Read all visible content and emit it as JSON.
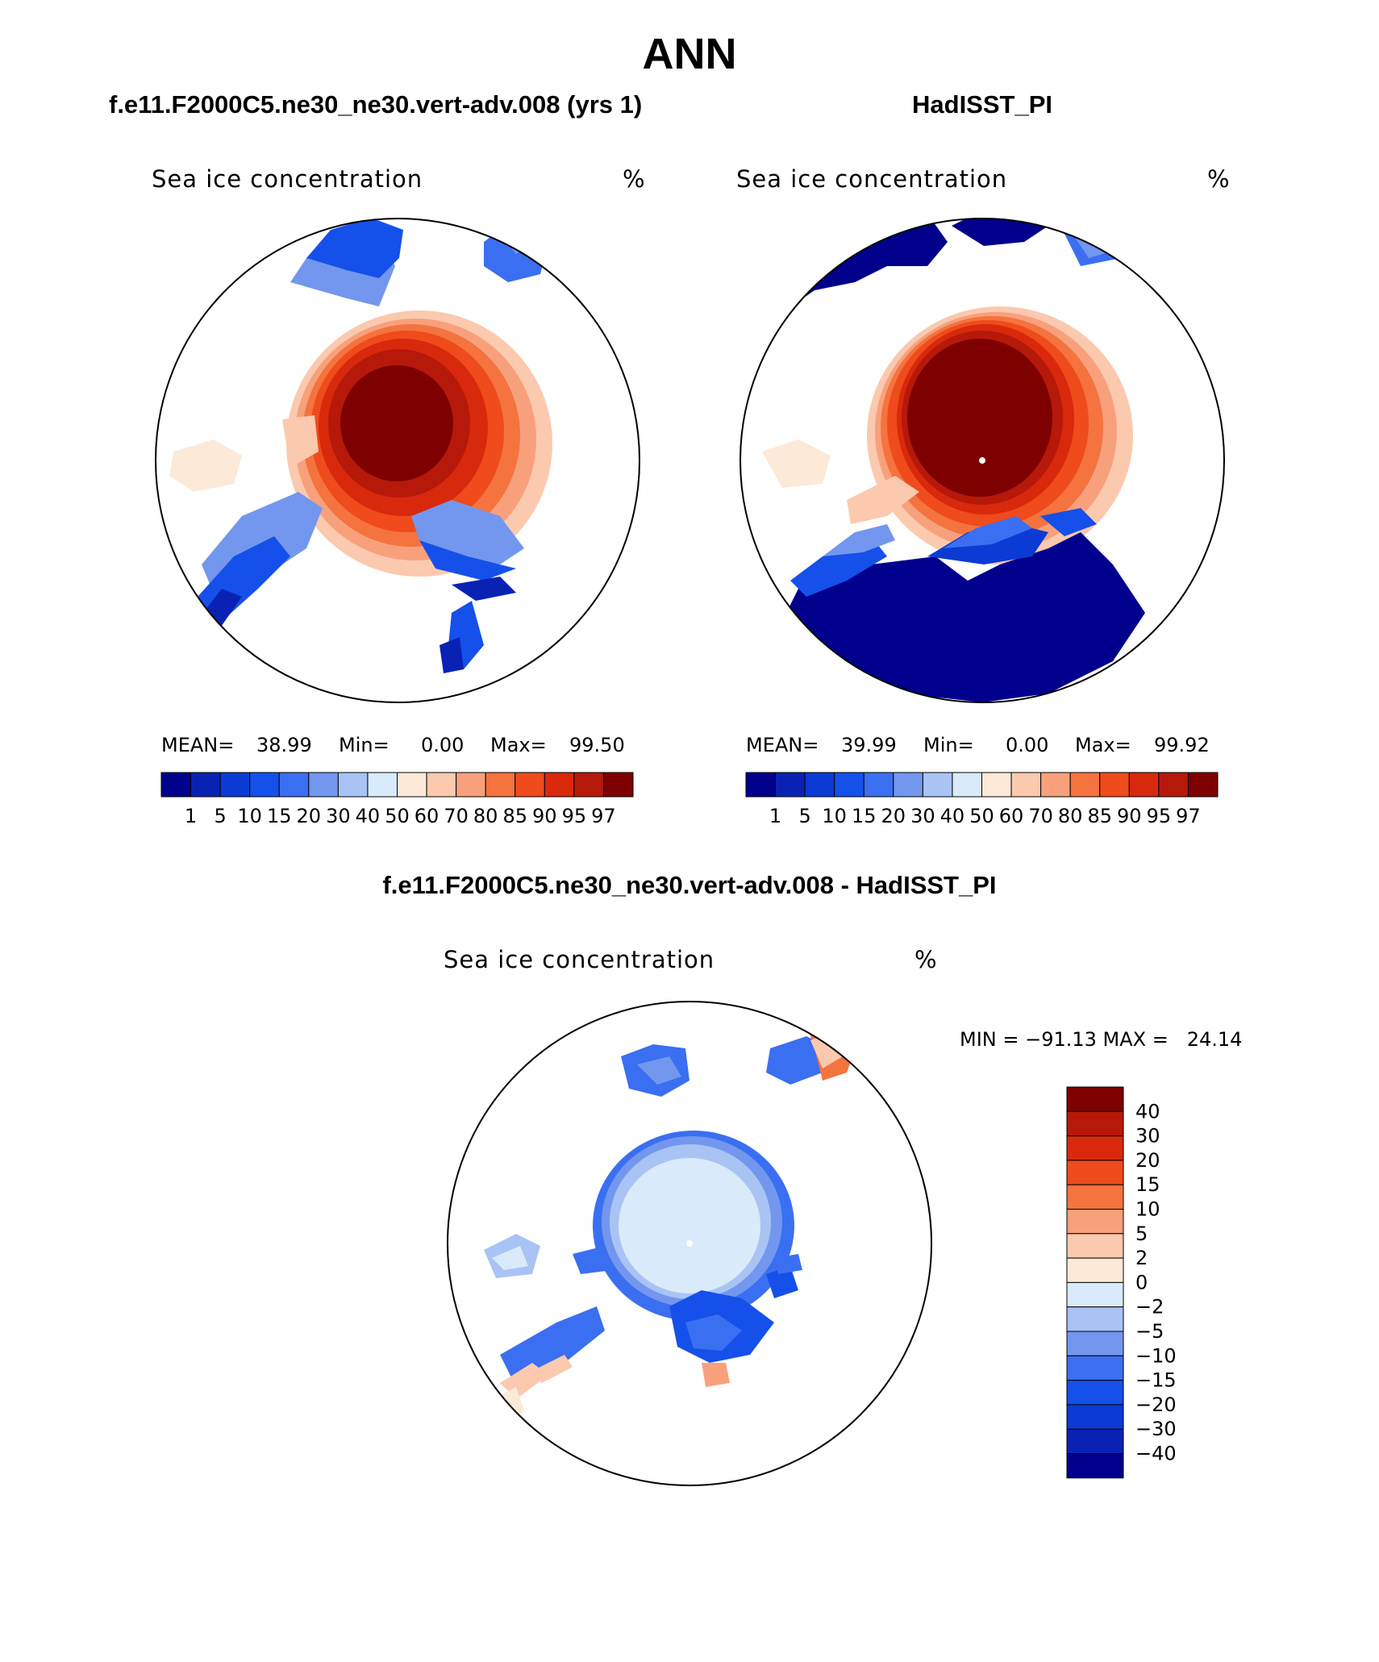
{
  "figure": {
    "title": "ANN",
    "palette_levels": {
      "concentration": [
        "#00008c",
        "#0a22b4",
        "#0b3bd4",
        "#1550ea",
        "#3b6ff2",
        "#7397ee",
        "#a9c3f4",
        "#d9eafa",
        "#fde9d8",
        "#fbc9ae",
        "#f8a07c",
        "#f4733f",
        "#ef4b1c",
        "#d8290c",
        "#b6190a",
        "#7f0000"
      ],
      "difference": [
        "#7f0000",
        "#b6190a",
        "#d8290c",
        "#ef4b1c",
        "#f4733f",
        "#f8a07c",
        "#fbc9ae",
        "#fde9d8",
        "#d9eafa",
        "#a9c3f4",
        "#7397ee",
        "#3b6ff2",
        "#1550ea",
        "#0b3bd4",
        "#0a22b4",
        "#00008c"
      ]
    }
  },
  "panels": {
    "model": {
      "header": "f.e11.F2000C5.ne30_ne30.vert-adv.008 (yrs 1)",
      "variable": "Sea ice concentration",
      "units": "%",
      "stats": {
        "mean_label": "MEAN=",
        "mean": "38.99",
        "min_label": "Min=",
        "min": "0.00",
        "max_label": "Max=",
        "max": "99.50"
      }
    },
    "obs": {
      "header": "HadISST_PI",
      "variable": "Sea ice concentration",
      "units": "%",
      "stats": {
        "mean_label": "MEAN=",
        "mean": "39.99",
        "min_label": "Min=",
        "min": "0.00",
        "max_label": "Max=",
        "max": "99.92"
      }
    },
    "diff": {
      "header": "f.e11.F2000C5.ne30_ne30.vert-adv.008 - HadISST_PI",
      "variable": "Sea ice concentration",
      "units": "%",
      "minmax": "MIN = −91.13 MAX =   24.14"
    }
  },
  "colorbars": {
    "concentration_labels": [
      "1",
      "5",
      "10",
      "15",
      "20",
      "30",
      "40",
      "50",
      "60",
      "70",
      "80",
      "85",
      "90",
      "95",
      "97"
    ],
    "difference_labels": [
      "40",
      "30",
      "20",
      "15",
      "10",
      "5",
      "2",
      "0",
      "−2",
      "−5",
      "−10",
      "−15",
      "−20",
      "−30",
      "−40"
    ]
  }
}
